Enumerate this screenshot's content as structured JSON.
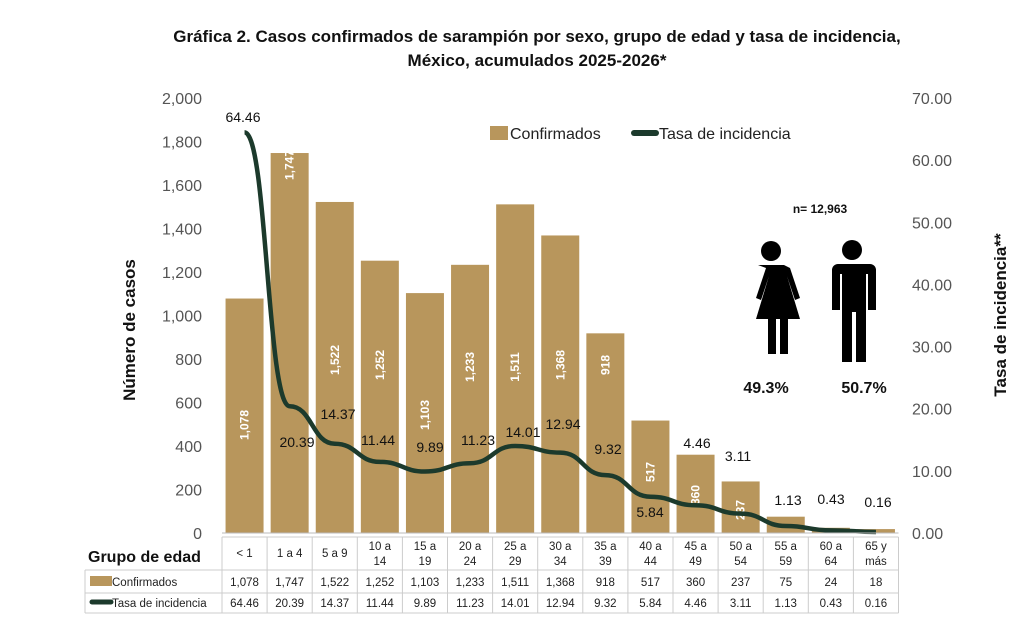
{
  "chart_data": {
    "type": "bar+line",
    "title": "Gráfica 2. Casos confirmados  de sarampión por sexo, grupo de edad y tasa de incidencia,",
    "title_line2": "México, acumulados 2025-2026*",
    "categories": [
      "< 1",
      "1 a 4",
      "5 a 9",
      "10 a 14",
      "15 a 19",
      "20 a 24",
      "25 a 29",
      "30 a 34",
      "35 a 39",
      "40 a 44",
      "45 a 49",
      "50 a 54",
      "55 a 59",
      "60 a 64",
      "65 y más"
    ],
    "category_lines": [
      [
        "< 1"
      ],
      [
        "1 a 4"
      ],
      [
        "5 a 9"
      ],
      [
        "10 a",
        "14"
      ],
      [
        "15 a",
        "19"
      ],
      [
        "20 a",
        "24"
      ],
      [
        "25 a",
        "29"
      ],
      [
        "30 a",
        "34"
      ],
      [
        "35 a",
        "39"
      ],
      [
        "40 a",
        "44"
      ],
      [
        "45 a",
        "49"
      ],
      [
        "50 a",
        "54"
      ],
      [
        "55 a",
        "59"
      ],
      [
        "60 a",
        "64"
      ],
      [
        "65 y",
        "más"
      ]
    ],
    "series": [
      {
        "name": "Confirmados",
        "type": "bar",
        "axis": "left",
        "color": "#b8965c",
        "values": [
          1078,
          1747,
          1522,
          1252,
          1103,
          1233,
          1511,
          1368,
          918,
          517,
          360,
          237,
          75,
          24,
          18
        ],
        "labels": [
          "1,078",
          "1,747",
          "1,522",
          "1,252",
          "1,103",
          "1,233",
          "1,511",
          "1,368",
          "918",
          "517",
          "360",
          "237",
          "75",
          "24",
          "18"
        ]
      },
      {
        "name": "Tasa de incidencia",
        "type": "line",
        "axis": "right",
        "color": "#1c3a2c",
        "values": [
          64.46,
          20.39,
          14.37,
          11.44,
          9.89,
          11.23,
          14.01,
          12.94,
          9.32,
          5.84,
          4.46,
          3.11,
          1.13,
          0.43,
          0.16
        ],
        "labels": [
          "64.46",
          "20.39",
          "14.37",
          "11.44",
          "9.89",
          "11.23",
          "14.01",
          "12.94",
          "9.32",
          "5.84",
          "4.46",
          "3.11",
          "1.13",
          "0.43",
          "0.16"
        ]
      }
    ],
    "ylabel": "Número de casos",
    "ylabel_right": "Tasa de incidencia**",
    "ylim": [
      0,
      2000
    ],
    "ylim_right": [
      0,
      70
    ],
    "yticks": [
      "0",
      "200",
      "400",
      "600",
      "800",
      "1,000",
      "1,200",
      "1,400",
      "1,600",
      "1,800",
      "2,000"
    ],
    "yticks_right": [
      "0.00",
      "10.00",
      "20.00",
      "30.00",
      "40.00",
      "50.00",
      "60.00",
      "70.00"
    ],
    "table_header": "Grupo de edad",
    "legend_position": "top-right",
    "grid": false,
    "annotation": {
      "n": "n= 12,963",
      "female_pct": "49.3%",
      "male_pct": "50.7%",
      "female_icon": "female-figure-icon",
      "male_icon": "male-figure-icon"
    }
  }
}
